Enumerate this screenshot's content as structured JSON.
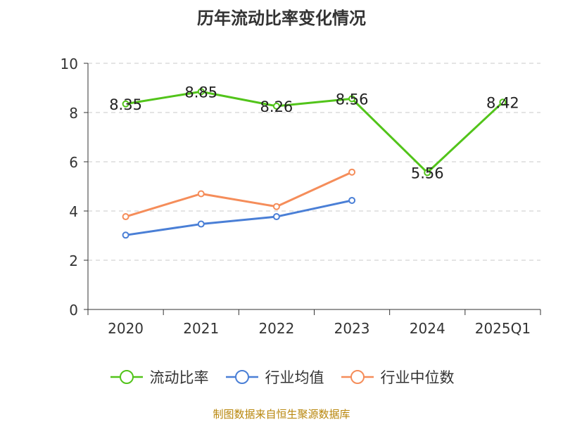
{
  "chart_data": {
    "type": "line",
    "title": "历年流动比率变化情况",
    "categories": [
      "2020",
      "2021",
      "2022",
      "2023",
      "2024",
      "2025Q1"
    ],
    "ylim": [
      0,
      10
    ],
    "yticks": [
      0,
      2,
      4,
      6,
      8,
      10
    ],
    "grid": true,
    "legend_position": "bottom",
    "series": [
      {
        "name": "流动比率",
        "color": "#52c41a",
        "values": [
          8.35,
          8.85,
          8.26,
          8.56,
          5.56,
          8.42
        ],
        "data_labels": [
          "8.35",
          "8.85",
          "8.26",
          "8.56",
          "5.56",
          "8.42"
        ]
      },
      {
        "name": "行业均值",
        "color": "#4a7fd6",
        "values": [
          3.02,
          3.47,
          3.77,
          4.43,
          null,
          null
        ]
      },
      {
        "name": "行业中位数",
        "color": "#f58d5a",
        "values": [
          3.77,
          4.7,
          4.18,
          5.58,
          null,
          null
        ]
      }
    ]
  },
  "source": "制图数据来自恒生聚源数据库"
}
